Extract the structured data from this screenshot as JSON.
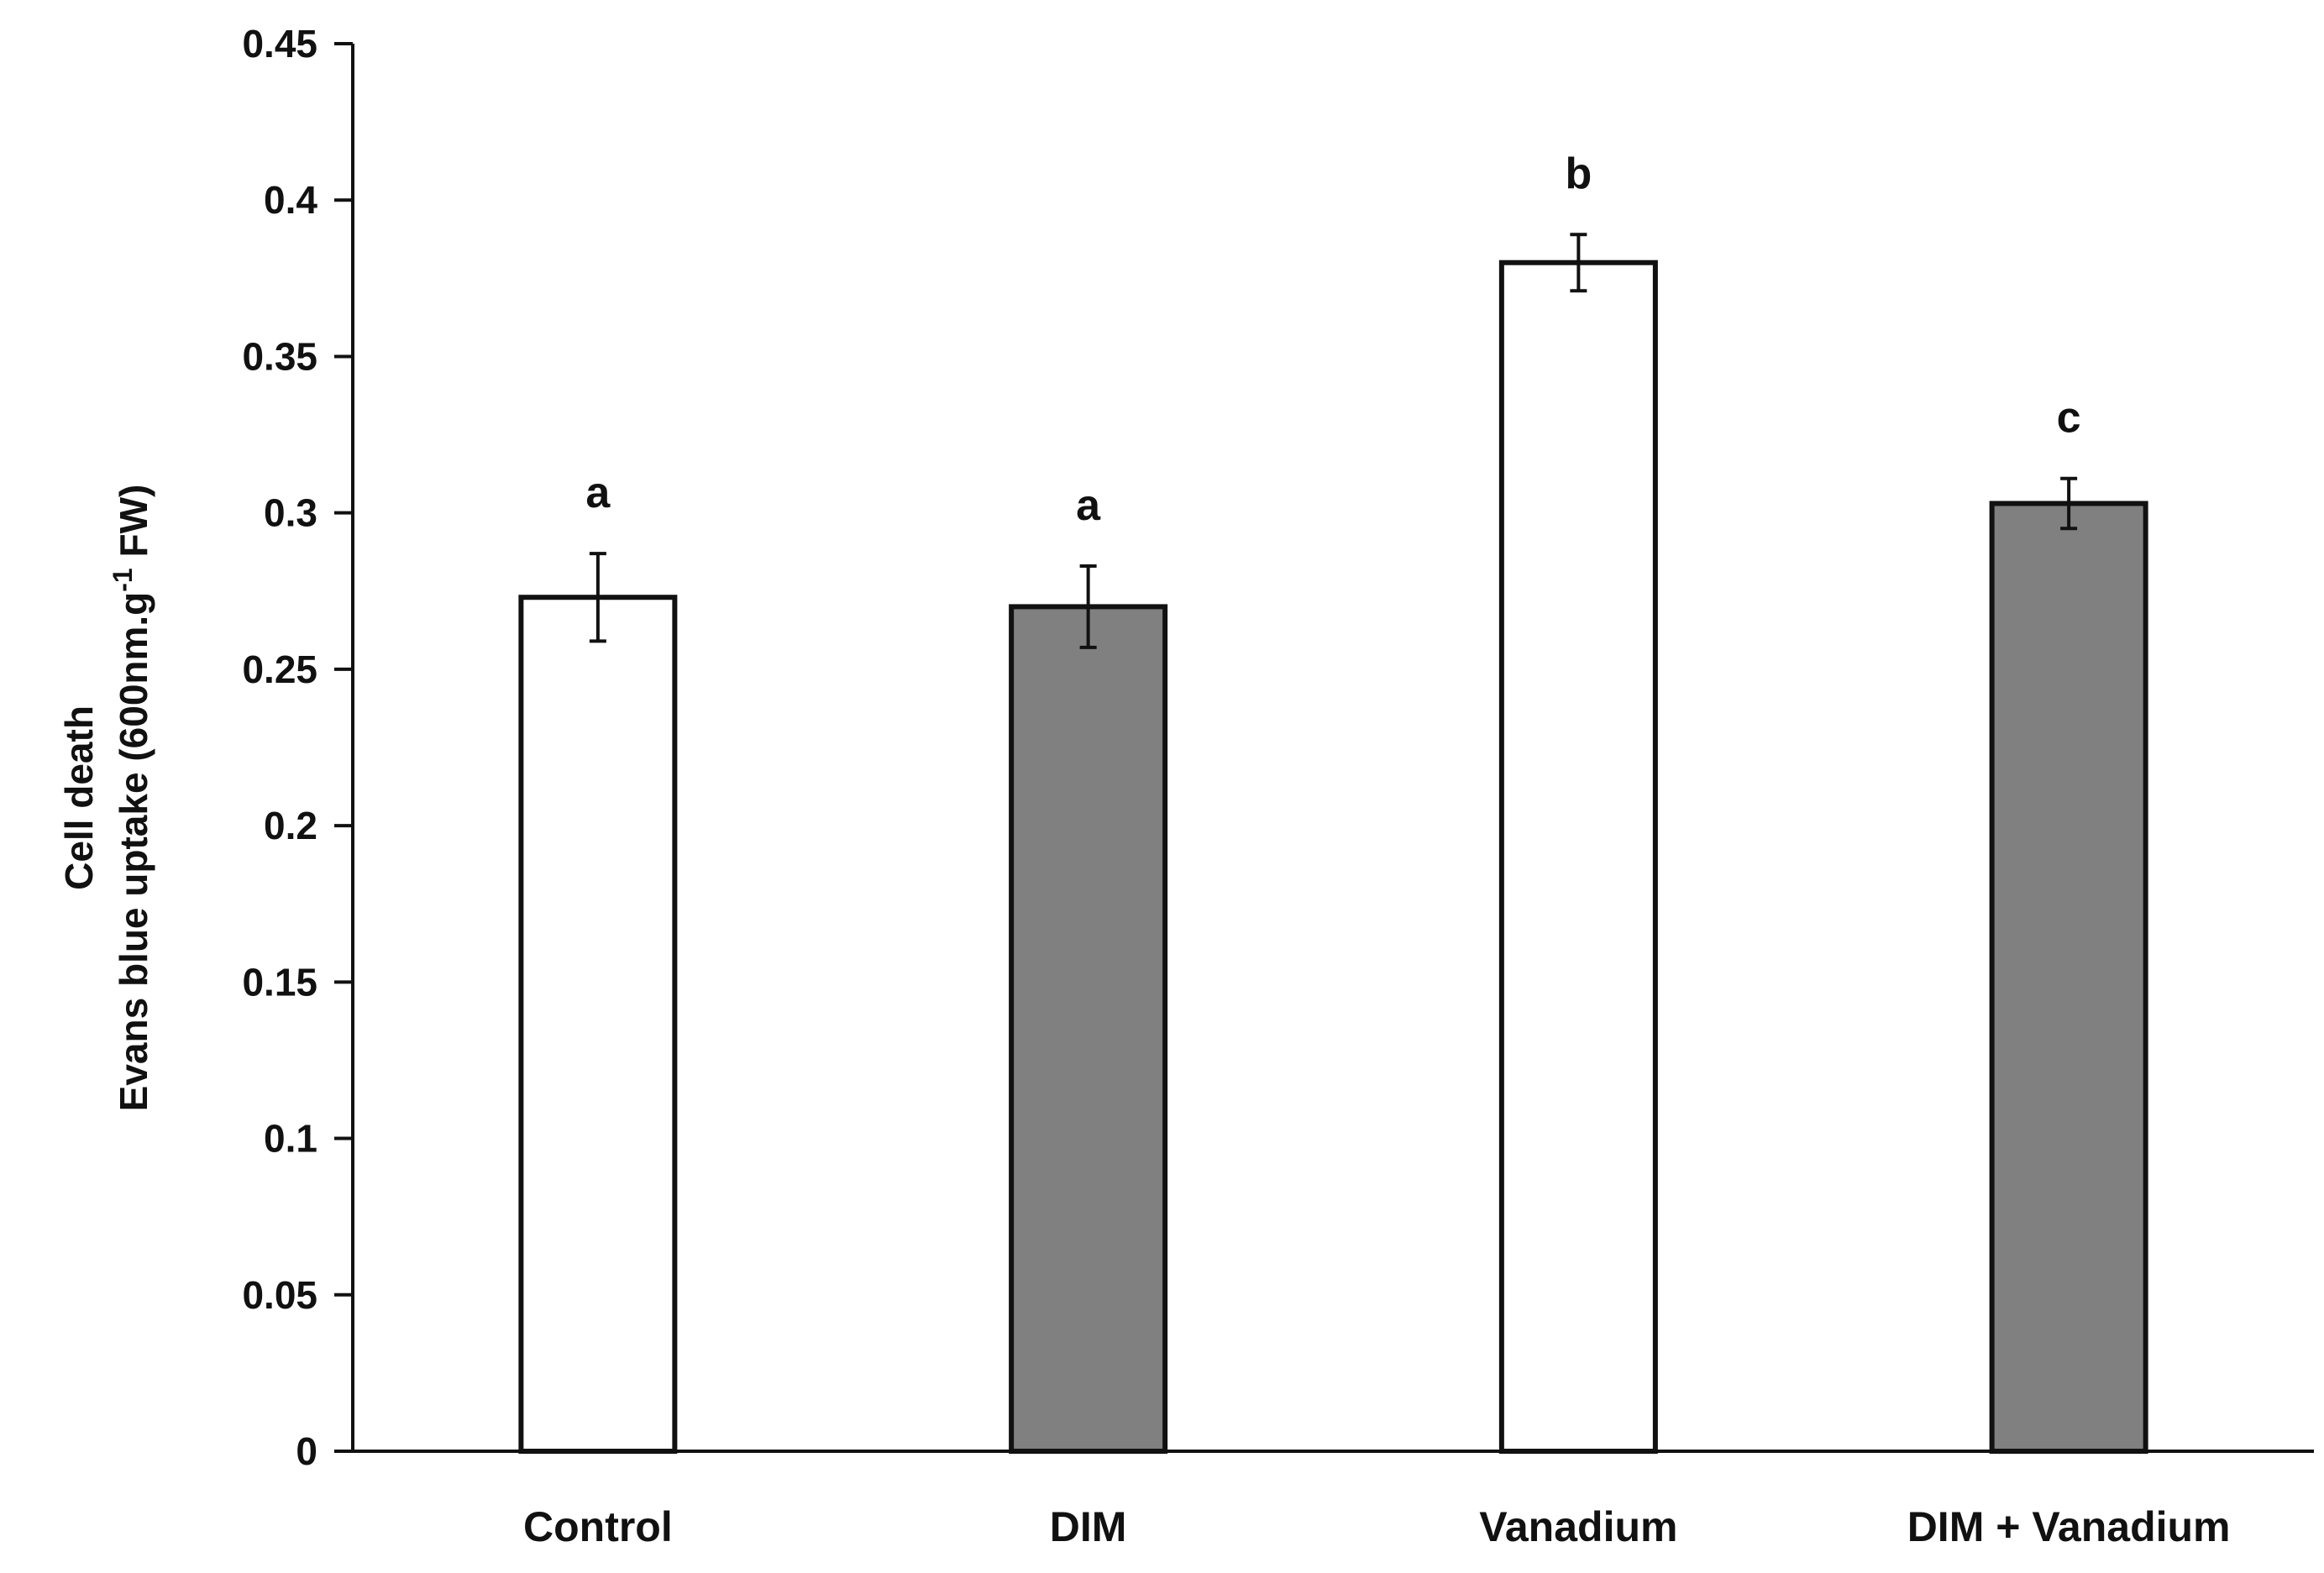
{
  "chart_data": {
    "type": "bar",
    "categories": [
      "Control",
      "DIM",
      "Vanadium",
      "DIM + Vanadium"
    ],
    "values": [
      0.273,
      0.27,
      0.38,
      0.303
    ],
    "errors": [
      0.014,
      0.013,
      0.009,
      0.008
    ],
    "significance": [
      "a",
      "a",
      "b",
      "c"
    ],
    "fill_colors": [
      "#ffffff",
      "#808080",
      "#ffffff",
      "#808080"
    ],
    "ylabel_line1": "Cell death",
    "ylabel_line2_main": "Evans blue uptake (600nm.g",
    "ylabel_line2_sup": "-1",
    "ylabel_line2_end": " FW)",
    "ylim": [
      0,
      0.45
    ],
    "yticks": [
      0,
      0.05,
      0.1,
      0.15,
      0.2,
      0.25,
      0.3,
      0.35,
      0.4,
      0.45
    ],
    "ytick_labels": [
      "0",
      "0.05",
      "0.1",
      "0.15",
      "0.2",
      "0.25",
      "0.3",
      "0.35",
      "0.4",
      "0.45"
    ],
    "grid": false
  }
}
